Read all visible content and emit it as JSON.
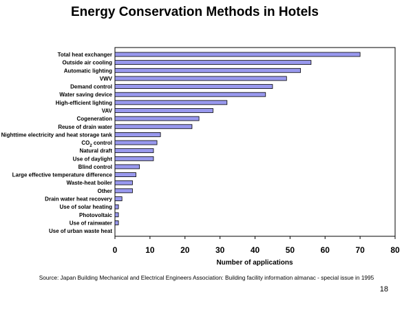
{
  "title": "Energy Conservation Methods in Hotels",
  "source": "Source: Japan Building Mechanical and Electrical Engineers Association:  Building facility information almanac - special issue in 1995",
  "page_number": "18",
  "colors": {
    "bar_fill": "#9999ee",
    "bar_stroke": "#000000",
    "plot_border": "#000000"
  },
  "chart_data": {
    "type": "bar",
    "orientation": "horizontal",
    "title": "Energy Conservation Methods in Hotels",
    "xlabel": "Number of applications",
    "ylabel": "",
    "xlim": [
      0,
      80
    ],
    "xticks": [
      0,
      10,
      20,
      30,
      40,
      50,
      60,
      70,
      80
    ],
    "grid": false,
    "categories": [
      "Total heat exchanger",
      "Outside air cooling",
      "Automatic lighting",
      "VWV",
      "Demand control",
      "Water saving device",
      "High-efficient lighting",
      "VAV",
      "Cogeneration",
      "Reuse of drain water",
      "Nighttime electricity and heat storage tank",
      "CO2 control",
      "Natural draft",
      "Use of daylight",
      "Blind control",
      "Large effective temperature difference",
      "Waste-heat boiler",
      "Other",
      "Drain water heat recovery",
      "Use of solar heating",
      "Photovoltaic",
      "Use of rainwater",
      "Use of urban waste heat"
    ],
    "values": [
      70,
      56,
      53,
      49,
      45,
      43,
      32,
      28,
      24,
      22,
      13,
      12,
      11,
      11,
      7,
      6,
      5,
      5,
      2,
      1,
      1,
      1,
      0
    ]
  }
}
